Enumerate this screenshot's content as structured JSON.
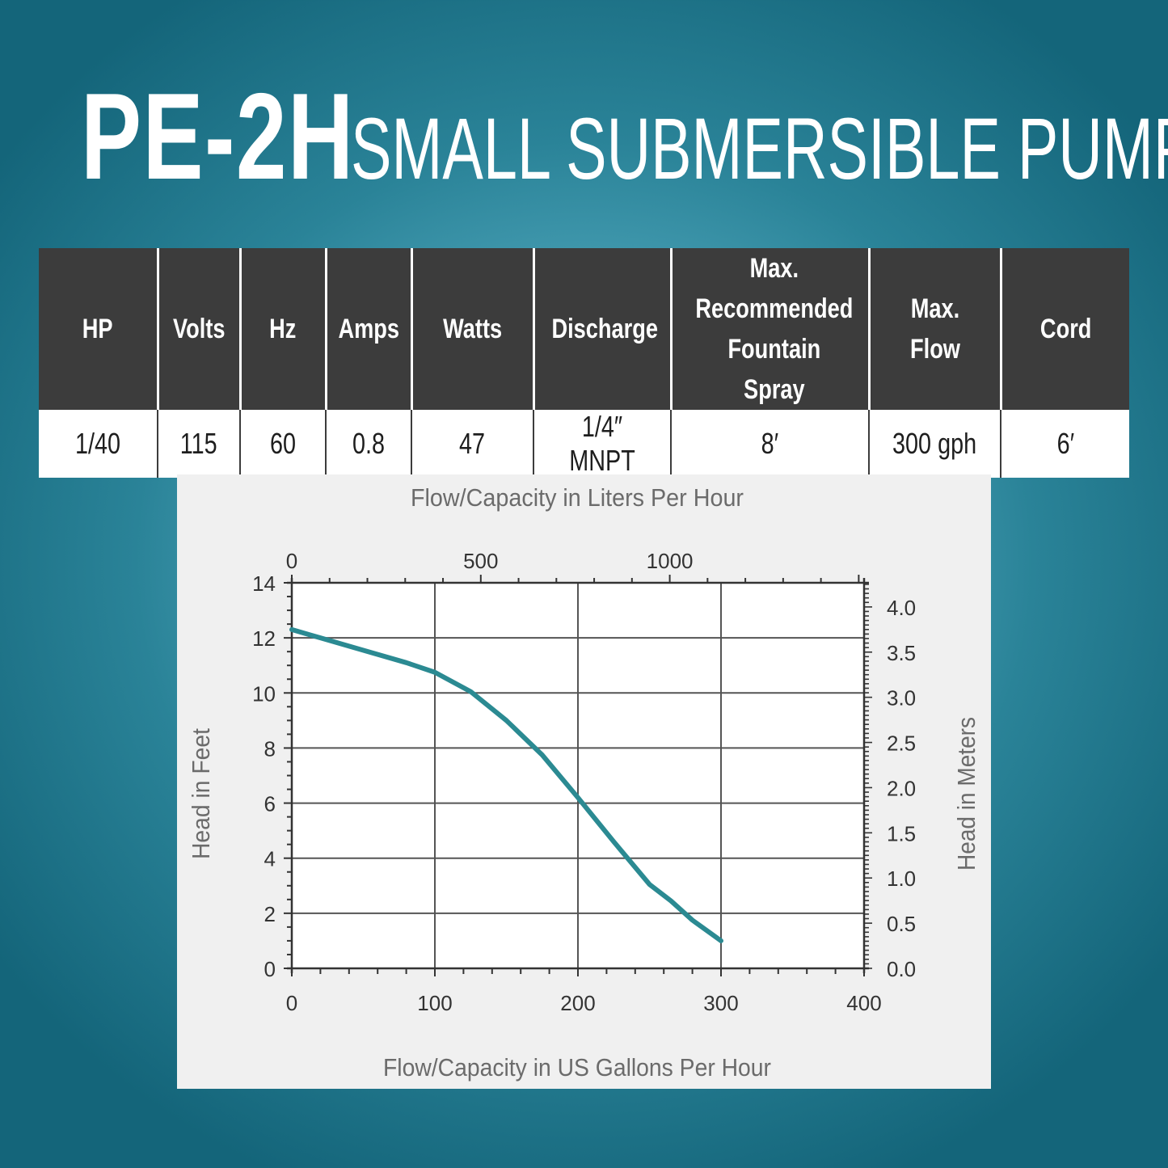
{
  "header": {
    "model": "PE-2H",
    "subtitle": "SMALL SUBMERSIBLE PUMP"
  },
  "spec_table": {
    "columns": [
      "HP",
      "Volts",
      "Hz",
      "Amps",
      "Watts",
      "Discharge",
      "Max. Recommended Fountain Spray",
      "Max. Flow",
      "Cord"
    ],
    "values": [
      "1/40",
      "115",
      "60",
      "0.8",
      "47",
      "1/4″ MNPT",
      "8′",
      "300 gph",
      "6′"
    ]
  },
  "colors": {
    "curve": "#2b8a92",
    "header_bg": "#3c3c3c",
    "axis_text": "#6b6b6b"
  },
  "chart_data": {
    "type": "line",
    "title": "",
    "x_top_label": "Flow/Capacity in Liters Per Hour",
    "x_top_ticks": [
      0,
      500,
      1000
    ],
    "xlabel": "Flow/Capacity in US Gallons Per Hour",
    "ylabel": "Head in Feet",
    "y2label": "Head in Meters",
    "xlim": [
      0,
      400
    ],
    "ylim": [
      0,
      14
    ],
    "x_ticks": [
      0,
      100,
      200,
      300,
      400
    ],
    "y_ticks": [
      0,
      2,
      4,
      6,
      8,
      10,
      12,
      14
    ],
    "y2_ticks": [
      "0.0",
      "0.5",
      "1.0",
      "1.5",
      "2.0",
      "2.5",
      "3.0",
      "3.5",
      "4.0"
    ],
    "grid": true,
    "series": [
      {
        "x": [
          0,
          20,
          50,
          80,
          100,
          125,
          150,
          175,
          200,
          225,
          250,
          265,
          280,
          300
        ],
        "y": [
          12.3,
          12.0,
          11.55,
          11.1,
          10.75,
          10.05,
          9.0,
          7.75,
          6.2,
          4.6,
          3.05,
          2.45,
          1.75,
          1.0
        ]
      }
    ]
  }
}
